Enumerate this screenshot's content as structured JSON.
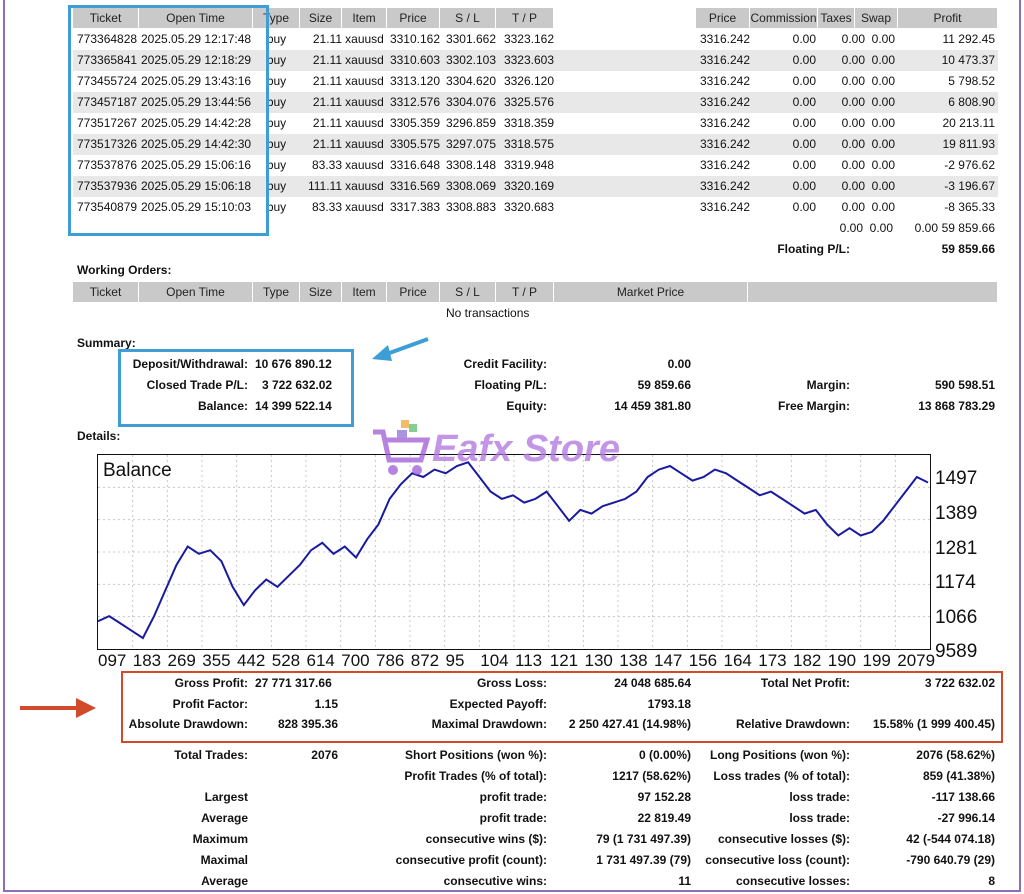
{
  "positions": {
    "headers": [
      "Ticket",
      "Open Time",
      "Type",
      "Size",
      "Item",
      "Price",
      "S / L",
      "T / P",
      "Price",
      "Commission",
      "Taxes",
      "Swap",
      "Profit"
    ],
    "rows": [
      {
        "ticket": "773364828",
        "time": "2025.05.29 12:17:48",
        "type": "buy",
        "size": "21.11",
        "item": "xauusd",
        "price": "3310.162",
        "sl": "3301.662",
        "tp": "3323.162",
        "cur": "3316.242",
        "comm": "0.00",
        "taxes": "0.00",
        "swap": "0.00",
        "profit": "11 292.45"
      },
      {
        "ticket": "773365841",
        "time": "2025.05.29 12:18:29",
        "type": "buy",
        "size": "21.11",
        "item": "xauusd",
        "price": "3310.603",
        "sl": "3302.103",
        "tp": "3323.603",
        "cur": "3316.242",
        "comm": "0.00",
        "taxes": "0.00",
        "swap": "0.00",
        "profit": "10 473.37"
      },
      {
        "ticket": "773455724",
        "time": "2025.05.29 13:43:16",
        "type": "buy",
        "size": "21.11",
        "item": "xauusd",
        "price": "3313.120",
        "sl": "3304.620",
        "tp": "3326.120",
        "cur": "3316.242",
        "comm": "0.00",
        "taxes": "0.00",
        "swap": "0.00",
        "profit": "5 798.52"
      },
      {
        "ticket": "773457187",
        "time": "2025.05.29 13:44:56",
        "type": "buy",
        "size": "21.11",
        "item": "xauusd",
        "price": "3312.576",
        "sl": "3304.076",
        "tp": "3325.576",
        "cur": "3316.242",
        "comm": "0.00",
        "taxes": "0.00",
        "swap": "0.00",
        "profit": "6 808.90"
      },
      {
        "ticket": "773517267",
        "time": "2025.05.29 14:42:28",
        "type": "buy",
        "size": "21.11",
        "item": "xauusd",
        "price": "3305.359",
        "sl": "3296.859",
        "tp": "3318.359",
        "cur": "3316.242",
        "comm": "0.00",
        "taxes": "0.00",
        "swap": "0.00",
        "profit": "20 213.11"
      },
      {
        "ticket": "773517326",
        "time": "2025.05.29 14:42:30",
        "type": "buy",
        "size": "21.11",
        "item": "xauusd",
        "price": "3305.575",
        "sl": "3297.075",
        "tp": "3318.575",
        "cur": "3316.242",
        "comm": "0.00",
        "taxes": "0.00",
        "swap": "0.00",
        "profit": "19 811.93"
      },
      {
        "ticket": "773537876",
        "time": "2025.05.29 15:06:16",
        "type": "buy",
        "size": "83.33",
        "item": "xauusd",
        "price": "3316.648",
        "sl": "3308.148",
        "tp": "3319.948",
        "cur": "3316.242",
        "comm": "0.00",
        "taxes": "0.00",
        "swap": "0.00",
        "profit": "-2 976.62"
      },
      {
        "ticket": "773537936",
        "time": "2025.05.29 15:06:18",
        "type": "buy",
        "size": "111.11",
        "item": "xauusd",
        "price": "3316.569",
        "sl": "3308.069",
        "tp": "3320.169",
        "cur": "3316.242",
        "comm": "0.00",
        "taxes": "0.00",
        "swap": "0.00",
        "profit": "-3 196.67"
      },
      {
        "ticket": "773540879",
        "time": "2025.05.29 15:10:03",
        "type": "buy",
        "size": "83.33",
        "item": "xauusd",
        "price": "3317.383",
        "sl": "3308.883",
        "tp": "3320.683",
        "cur": "3316.242",
        "comm": "0.00",
        "taxes": "0.00",
        "swap": "0.00",
        "profit": "-8 365.33"
      }
    ],
    "totals": {
      "comm": "0.00",
      "taxes": "0.00",
      "swap": "0.00",
      "profit": "59 859.66"
    },
    "floating_label": "Floating P/L:",
    "floating_value": "59 859.66"
  },
  "working_orders": {
    "title": "Working Orders:",
    "headers": [
      "Ticket",
      "Open Time",
      "Type",
      "Size",
      "Item",
      "Price",
      "S / L",
      "T / P",
      "Market Price"
    ],
    "empty": "No transactions"
  },
  "summary": {
    "title": "Summary:",
    "deposit_label": "Deposit/Withdrawal:",
    "deposit_value": "10 676 890.12",
    "closed_label": "Closed Trade P/L:",
    "closed_value": "3 722 632.02",
    "balance_label": "Balance:",
    "balance_value": "14 399 522.14",
    "credit_label": "Credit Facility:",
    "credit_value": "0.00",
    "floating_label": "Floating P/L:",
    "floating_value": "59 859.66",
    "equity_label": "Equity:",
    "equity_value": "14 459 381.80",
    "margin_label": "Margin:",
    "margin_value": "590 598.51",
    "free_margin_label": "Free Margin:",
    "free_margin_value": "13 868 783.29"
  },
  "details": {
    "title": "Details:",
    "watermark": "Eafx Store"
  },
  "chart_data": {
    "type": "line",
    "title": "Balance",
    "y_tick_labels": [
      "1497",
      "1389",
      "1281",
      "1174",
      "1066",
      "9589"
    ],
    "x_tick_labels": [
      "097",
      "183",
      "269",
      "355",
      "442",
      "528",
      "614",
      "700",
      "786",
      "872",
      "95",
      "104",
      "113",
      "121",
      "130",
      "138",
      "147",
      "156",
      "164",
      "173",
      "182",
      "190",
      "199",
      "2079"
    ],
    "ylim": [
      9589,
      1497
    ],
    "series": [
      {
        "color": "#1a1aa0",
        "values": [
          1066,
          1080,
          1060,
          1040,
          1020,
          1080,
          1150,
          1220,
          1270,
          1250,
          1260,
          1230,
          1160,
          1110,
          1150,
          1180,
          1160,
          1190,
          1220,
          1260,
          1280,
          1250,
          1270,
          1240,
          1290,
          1330,
          1400,
          1440,
          1470,
          1460,
          1480,
          1470,
          1490,
          1500,
          1460,
          1420,
          1400,
          1410,
          1390,
          1400,
          1420,
          1380,
          1340,
          1370,
          1360,
          1380,
          1390,
          1400,
          1420,
          1460,
          1480,
          1490,
          1470,
          1450,
          1460,
          1480,
          1470,
          1450,
          1430,
          1410,
          1420,
          1400,
          1380,
          1360,
          1370,
          1330,
          1300,
          1320,
          1300,
          1310,
          1340,
          1380,
          1420,
          1460,
          1445
        ]
      }
    ],
    "grid": true
  },
  "stats": {
    "gross_profit_label": "Gross Profit:",
    "gross_profit_value": "27 771 317.66",
    "gross_loss_label": "Gross Loss:",
    "gross_loss_value": "24 048 685.64",
    "net_profit_label": "Total Net Profit:",
    "net_profit_value": "3 722 632.02",
    "profit_factor_label": "Profit Factor:",
    "profit_factor_value": "1.15",
    "expected_payoff_label": "Expected Payoff:",
    "expected_payoff_value": "1793.18",
    "abs_dd_label": "Absolute Drawdown:",
    "abs_dd_value": "828 395.36",
    "max_dd_label": "Maximal Drawdown:",
    "max_dd_value": "2 250 427.41 (14.98%)",
    "rel_dd_label": "Relative Drawdown:",
    "rel_dd_value": "15.58% (1 999 400.45)",
    "total_trades_label": "Total Trades:",
    "total_trades_value": "2076",
    "short_label": "Short Positions (won %):",
    "short_value": "0 (0.00%)",
    "long_label": "Long Positions (won %):",
    "long_value": "2076 (58.62%)",
    "profit_trades_label": "Profit Trades (% of total):",
    "profit_trades_value": "1217 (58.62%)",
    "loss_trades_label": "Loss trades (% of total):",
    "loss_trades_value": "859 (41.38%)",
    "largest_label": "Largest",
    "largest_profit_label": "profit trade:",
    "largest_profit_value": "97 152.28",
    "largest_loss_label": "loss trade:",
    "largest_loss_value": "-117 138.66",
    "average_label": "Average",
    "average_profit_label": "profit trade:",
    "average_profit_value": "22 819.49",
    "average_loss_label": "loss trade:",
    "average_loss_value": "-27 996.14",
    "maximum_label": "Maximum",
    "max_wins_label": "consecutive wins ($):",
    "max_wins_value": "79 (1 731 497.39)",
    "max_losses_label": "consecutive losses ($):",
    "max_losses_value": "42 (-544 074.18)",
    "maximal_label": "Maximal",
    "maxl_profit_label": "consecutive profit (count):",
    "maxl_profit_value": "1 731 497.39 (79)",
    "maxl_loss_label": "consecutive loss (count):",
    "maxl_loss_value": "-790 640.79 (29)",
    "avg2_label": "Average",
    "avg_wins_label": "consecutive wins:",
    "avg_wins_value": "11",
    "avg_losses_label": "consecutive losses:",
    "avg_losses_value": "8"
  }
}
